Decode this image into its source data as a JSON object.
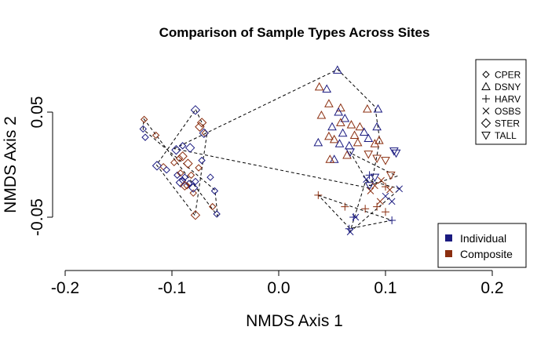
{
  "chart_data": {
    "type": "scatter",
    "title": "Comparison of Sample Types Across Sites",
    "xlabel": "NMDS Axis 1",
    "ylabel": "NMDS Axis 2",
    "xlim": [
      -0.2,
      0.2
    ],
    "ylim": [
      -0.1,
      0.1
    ],
    "x_ticks": [
      -0.2,
      -0.1,
      0.0,
      0.1,
      0.2
    ],
    "x_tick_labels": [
      "-0.2",
      "-0.1",
      "0.0",
      "0.1",
      "0.2"
    ],
    "y_ticks": [
      -0.05,
      0.05
    ],
    "y_tick_labels": [
      "-0.05",
      "0.05"
    ],
    "grid": false,
    "colors": {
      "Individual": "#1a1a80",
      "Composite": "#8b2e0f"
    },
    "shape_legend": {
      "placement": "top-right",
      "items": [
        {
          "label": "CPER",
          "symbol": "diamond-small"
        },
        {
          "label": "DSNY",
          "symbol": "triangle-up"
        },
        {
          "label": "HARV",
          "symbol": "plus"
        },
        {
          "label": "OSBS",
          "symbol": "cross"
        },
        {
          "label": "STER",
          "symbol": "diamond"
        },
        {
          "label": "TALL",
          "symbol": "triangle-down"
        }
      ]
    },
    "color_legend": {
      "placement": "bottom-right",
      "items": [
        {
          "label": "Individual",
          "color": "#1a1a80"
        },
        {
          "label": "Composite",
          "color": "#8b2e0f"
        }
      ]
    },
    "hulls": [
      {
        "site": "CPER",
        "points": [
          [
            -0.1265,
            0.0437
          ],
          [
            -0.0572,
            -0.0488
          ],
          [
            -0.0597,
            -0.0242
          ],
          [
            -0.127,
            0.0336
          ],
          [
            -0.1265,
            0.0437
          ]
        ]
      },
      {
        "site": "STER",
        "points": [
          [
            -0.0778,
            0.0525
          ],
          [
            -0.0671,
            0.0298
          ],
          [
            -0.0784,
            -0.0484
          ],
          [
            -0.1144,
            -0.0002
          ],
          [
            -0.0778,
            0.0525
          ]
        ]
      },
      {
        "site": "DSNY",
        "points": [
          [
            -0.098,
            0.0152
          ],
          [
            0.0552,
            0.0907
          ],
          [
            0.0902,
            0.0551
          ],
          [
            0.0946,
            0.0232
          ],
          [
            0.0862,
            -0.0225
          ],
          [
            -0.098,
            0.0152
          ]
        ]
      },
      {
        "site": "TALL",
        "points": [
          [
            0.0667,
            0.0126
          ],
          [
            0.0851,
            -0.02
          ],
          [
            0.1108,
            -0.011
          ],
          [
            0.0692,
            0.01
          ]
        ]
      },
      {
        "site": "HARV",
        "points": [
          [
            0.0372,
            -0.0292
          ],
          [
            0.106,
            -0.053
          ],
          [
            0.0667,
            -0.0608
          ],
          [
            0.0372,
            -0.0292
          ]
        ]
      },
      {
        "site": "OSBS",
        "points": [
          [
            0.0667,
            -0.0642
          ],
          [
            0.1134,
            -0.023
          ],
          [
            0.0818,
            -0.0143
          ],
          [
            0.0667,
            -0.0642
          ]
        ]
      }
    ],
    "series": [
      {
        "site": "CPER",
        "symbol": "diamond-small",
        "points": [
          [
            -0.127,
            0.034,
            "I"
          ],
          [
            -0.125,
            0.026,
            "I"
          ],
          [
            -0.108,
            -0.002,
            "C"
          ],
          [
            -0.105,
            -0.005,
            "I"
          ],
          [
            -0.098,
            0.002,
            "C"
          ],
          [
            -0.095,
            -0.01,
            "I"
          ],
          [
            -0.093,
            0.006,
            "C"
          ],
          [
            -0.092,
            -0.008,
            "C"
          ],
          [
            -0.09,
            -0.015,
            "I"
          ],
          [
            -0.088,
            -0.012,
            "I"
          ],
          [
            -0.086,
            -0.02,
            "C"
          ],
          [
            -0.084,
            -0.018,
            "I"
          ],
          [
            -0.082,
            -0.01,
            "C"
          ],
          [
            -0.08,
            -0.027,
            "C"
          ],
          [
            -0.078,
            -0.016,
            "I"
          ],
          [
            -0.075,
            -0.003,
            "C"
          ],
          [
            -0.072,
            0.004,
            "I"
          ],
          [
            -0.069,
            0.03,
            "C"
          ],
          [
            -0.064,
            -0.012,
            "I"
          ],
          [
            -0.062,
            -0.04,
            "C"
          ],
          [
            -0.06,
            -0.025,
            "I"
          ],
          [
            -0.058,
            -0.047,
            "I"
          ],
          [
            -0.115,
            0.028,
            "C"
          ],
          [
            -0.126,
            0.043,
            "C"
          ],
          [
            -0.09,
            0.018,
            "I"
          ]
        ]
      },
      {
        "site": "STER",
        "symbol": "diamond",
        "points": [
          [
            -0.078,
            0.052,
            "I"
          ],
          [
            -0.072,
            0.04,
            "C"
          ],
          [
            -0.07,
            0.03,
            "I"
          ],
          [
            -0.083,
            0.016,
            "I"
          ],
          [
            -0.09,
            0.008,
            "C"
          ],
          [
            -0.085,
            0.001,
            "C"
          ],
          [
            -0.092,
            -0.017,
            "I"
          ],
          [
            -0.088,
            -0.02,
            "C"
          ],
          [
            -0.078,
            -0.048,
            "C"
          ],
          [
            -0.114,
            -0.001,
            "I"
          ],
          [
            -0.074,
            0.036,
            "C"
          ],
          [
            -0.096,
            0.014,
            "I"
          ],
          [
            -0.08,
            -0.022,
            "I"
          ]
        ]
      },
      {
        "site": "DSNY",
        "symbol": "triangle-up",
        "points": [
          [
            0.055,
            0.09,
            "I"
          ],
          [
            0.045,
            0.072,
            "I"
          ],
          [
            0.038,
            0.074,
            "C"
          ],
          [
            0.047,
            0.058,
            "C"
          ],
          [
            0.058,
            0.054,
            "C"
          ],
          [
            0.056,
            0.05,
            "I"
          ],
          [
            0.062,
            0.044,
            "I"
          ],
          [
            0.058,
            0.04,
            "C"
          ],
          [
            0.068,
            0.038,
            "C"
          ],
          [
            0.076,
            0.036,
            "C"
          ],
          [
            0.08,
            0.031,
            "I"
          ],
          [
            0.084,
            0.025,
            "I"
          ],
          [
            0.092,
            0.036,
            "I"
          ],
          [
            0.093,
            0.053,
            "I"
          ],
          [
            0.083,
            0.053,
            "C"
          ],
          [
            0.04,
            0.047,
            "C"
          ],
          [
            0.047,
            0.027,
            "C"
          ],
          [
            0.052,
            0.024,
            "C"
          ],
          [
            0.057,
            0.02,
            "I"
          ],
          [
            0.066,
            0.018,
            "I"
          ],
          [
            0.06,
            0.03,
            "I"
          ],
          [
            0.071,
            0.028,
            "C"
          ],
          [
            0.074,
            0.021,
            "C"
          ],
          [
            0.09,
            0.02,
            "C"
          ],
          [
            0.094,
            0.023,
            "C"
          ],
          [
            0.052,
            0.005,
            "I"
          ],
          [
            0.048,
            0.005,
            "C"
          ],
          [
            0.037,
            0.021,
            "I"
          ],
          [
            0.05,
            0.036,
            "I"
          ],
          [
            0.064,
            0.009,
            "C"
          ]
        ]
      },
      {
        "site": "TALL",
        "symbol": "triangle-down",
        "points": [
          [
            0.067,
            0.012,
            "I"
          ],
          [
            0.084,
            0.01,
            "C"
          ],
          [
            0.092,
            0.006,
            "C"
          ],
          [
            0.11,
            0.011,
            "I"
          ],
          [
            0.108,
            0.013,
            "I"
          ],
          [
            0.1,
            0.004,
            "C"
          ],
          [
            0.085,
            -0.02,
            "I"
          ],
          [
            0.105,
            -0.01,
            "C"
          ],
          [
            0.09,
            -0.012,
            "I"
          ]
        ]
      },
      {
        "site": "HARV",
        "symbol": "plus",
        "points": [
          [
            0.037,
            -0.029,
            "C"
          ],
          [
            0.062,
            -0.04,
            "C"
          ],
          [
            0.07,
            -0.05,
            "I"
          ],
          [
            0.066,
            -0.061,
            "I"
          ],
          [
            0.081,
            -0.042,
            "C"
          ],
          [
            0.092,
            -0.04,
            "C"
          ],
          [
            0.1,
            -0.045,
            "C"
          ],
          [
            0.106,
            -0.053,
            "I"
          ],
          [
            0.1,
            -0.021,
            "C"
          ],
          [
            0.085,
            -0.01,
            "I"
          ]
        ]
      },
      {
        "site": "OSBS",
        "symbol": "cross",
        "points": [
          [
            0.067,
            -0.064,
            "I"
          ],
          [
            0.072,
            -0.05,
            "I"
          ],
          [
            0.082,
            -0.014,
            "I"
          ],
          [
            0.09,
            -0.02,
            "C"
          ],
          [
            0.096,
            -0.015,
            "C"
          ],
          [
            0.1,
            -0.03,
            "I"
          ],
          [
            0.104,
            -0.024,
            "C"
          ],
          [
            0.106,
            -0.035,
            "I"
          ],
          [
            0.113,
            -0.023,
            "I"
          ],
          [
            0.095,
            -0.035,
            "C"
          ],
          [
            0.086,
            -0.025,
            "C"
          ]
        ]
      }
    ]
  }
}
